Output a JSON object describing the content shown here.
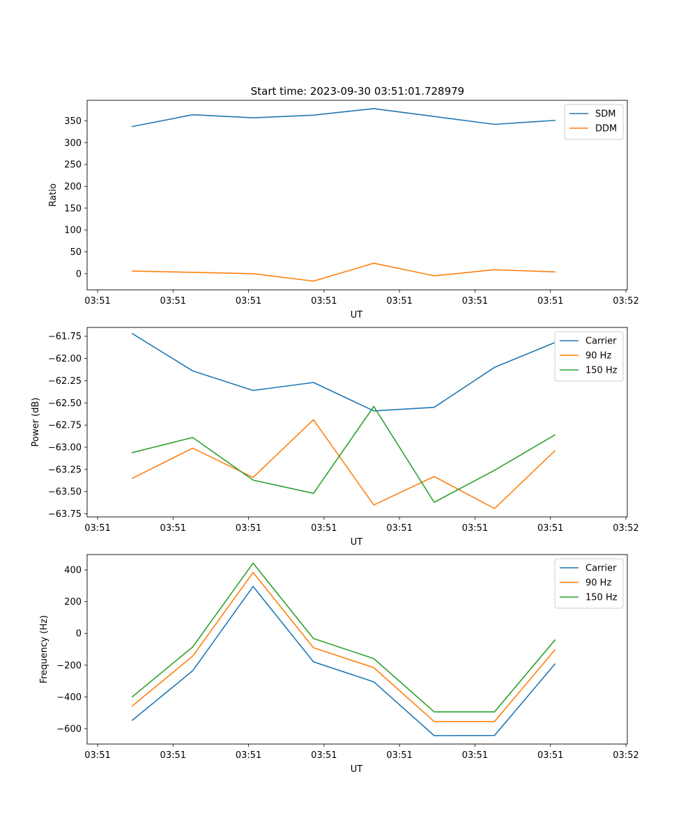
{
  "title": "Start time: 2023-09-30 03:51:01.728979",
  "chart_data": [
    {
      "type": "line",
      "xlabel": "UT",
      "ylabel": "Ratio",
      "x_tick_labels": [
        "03:51",
        "03:51",
        "03:51",
        "03:51",
        "03:51",
        "03:51",
        "03:51",
        "03:52"
      ],
      "x": [
        1,
        2,
        3,
        4,
        5,
        6,
        7,
        8
      ],
      "xlim": [
        0.25,
        9.2
      ],
      "ylim": [
        -37,
        397
      ],
      "yticks": [
        0,
        50,
        100,
        150,
        200,
        250,
        300,
        350
      ],
      "ytick_labels": [
        "0",
        "50",
        "100",
        "150",
        "200",
        "250",
        "300",
        "350"
      ],
      "legend_position": "top-right",
      "series": [
        {
          "name": "SDM",
          "color": "#1f77b4",
          "values": [
            337,
            364,
            357,
            363,
            378,
            360,
            342,
            351
          ]
        },
        {
          "name": "DDM",
          "color": "#ff7f0e",
          "values": [
            6,
            3,
            0,
            -17,
            24,
            -5,
            9,
            4
          ]
        }
      ]
    },
    {
      "type": "line",
      "xlabel": "UT",
      "ylabel": "Power (dB)",
      "x_tick_labels": [
        "03:51",
        "03:51",
        "03:51",
        "03:51",
        "03:51",
        "03:51",
        "03:51",
        "03:52"
      ],
      "x": [
        1,
        2,
        3,
        4,
        5,
        6,
        7,
        8
      ],
      "xlim": [
        0.25,
        9.2
      ],
      "ylim": [
        -63.785,
        -61.65
      ],
      "yticks": [
        -61.75,
        -62.0,
        -62.25,
        -62.5,
        -62.75,
        -63.0,
        -63.25,
        -63.5,
        -63.75
      ],
      "ytick_labels": [
        "−61.75",
        "−62.00",
        "−62.25",
        "−62.50",
        "−62.75",
        "−63.00",
        "−63.25",
        "−63.50",
        "−63.75"
      ],
      "legend_position": "top-right",
      "series": [
        {
          "name": "Carrier",
          "color": "#1f77b4",
          "values": [
            -61.72,
            -62.14,
            -62.36,
            -62.27,
            -62.59,
            -62.55,
            -62.1,
            -61.82
          ]
        },
        {
          "name": "90 Hz",
          "color": "#ff7f0e",
          "values": [
            -63.35,
            -63.01,
            -63.34,
            -62.69,
            -63.65,
            -63.33,
            -63.69,
            -63.04
          ]
        },
        {
          "name": "150 Hz",
          "color": "#2ca02c",
          "values": [
            -63.06,
            -62.89,
            -63.37,
            -63.52,
            -62.54,
            -63.62,
            -63.26,
            -62.86
          ]
        }
      ]
    },
    {
      "type": "line",
      "xlabel": "UT",
      "ylabel": "Frequency (Hz)",
      "x_tick_labels": [
        "03:51",
        "03:51",
        "03:51",
        "03:51",
        "03:51",
        "03:51",
        "03:51",
        "03:52"
      ],
      "x": [
        1,
        2,
        3,
        4,
        5,
        6,
        7,
        8
      ],
      "xlim": [
        0.25,
        9.2
      ],
      "ylim": [
        -697,
        497
      ],
      "yticks": [
        400,
        200,
        0,
        -200,
        -400,
        -600
      ],
      "ytick_labels": [
        "400",
        "200",
        "0",
        "−200",
        "−400",
        "−600"
      ],
      "legend_position": "top-right",
      "series": [
        {
          "name": "Carrier",
          "color": "#1f77b4",
          "values": [
            -547,
            -235,
            296,
            -179,
            -305,
            -644,
            -643,
            -193
          ]
        },
        {
          "name": "90 Hz",
          "color": "#ff7f0e",
          "values": [
            -457,
            -143,
            384,
            -90,
            -216,
            -555,
            -555,
            -104
          ]
        },
        {
          "name": "150 Hz",
          "color": "#2ca02c",
          "values": [
            -399,
            -85,
            443,
            -32,
            -159,
            -494,
            -494,
            -42
          ]
        }
      ]
    }
  ]
}
